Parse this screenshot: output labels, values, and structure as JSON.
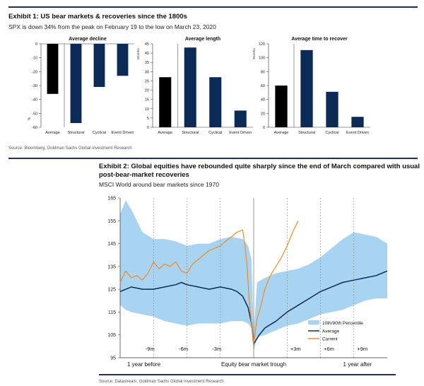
{
  "exhibit1": {
    "title": "Exhibit 1: US bear markets & recoveries since the 1800s",
    "subtitle": "SPX is down 34% from the peak on February 19 to the low on March 23, 2020",
    "source": "Source: Bloomberg, Goldman Sachs Global Investment Research"
  },
  "exhibit2": {
    "title_line1": "Exhibit 2: Global equities have rebounded quite sharply since the end of March compared with usual",
    "title_line2": "post-bear-market recoveries",
    "subtitle": "MSCI World around bear markets since 1970",
    "source": "Source: Datastream, Goldman Sachs Global Investment Research"
  },
  "colors": {
    "black": "#000000",
    "navy": "#0b2a55",
    "band": "#a9d4f1",
    "average_line": "#0f2a55",
    "current_line": "#f08a24",
    "rule": "#1f2f55"
  },
  "chart_data": [
    {
      "type": "bar",
      "title": "Average decline",
      "categories": [
        "Average",
        "Structural",
        "Cyclical",
        "Event Driven"
      ],
      "values": [
        -36,
        -57,
        -31,
        -23
      ],
      "ylim": [
        -60,
        0
      ],
      "yticks": [
        0,
        -10,
        -20,
        -30,
        -40,
        -50,
        -60
      ],
      "ytick_labels": [
        "0",
        "-10",
        "-20",
        "-30",
        "-40",
        "-50",
        "-60"
      ],
      "ylabel": "%",
      "colors": [
        "#000000",
        "#0b2a55",
        "#0b2a55",
        "#0b2a55"
      ]
    },
    {
      "type": "bar",
      "title": "Average length",
      "categories": [
        "Average",
        "Structural",
        "Cyclical",
        "Event Driven"
      ],
      "values": [
        27,
        43,
        27,
        9
      ],
      "ylim": [
        0,
        45
      ],
      "yticks": [
        0,
        5,
        10,
        15,
        20,
        25,
        30,
        35,
        40,
        45
      ],
      "ytick_labels": [
        "0",
        "5",
        "10",
        "15",
        "20",
        "25",
        "30",
        "35",
        "40",
        "45"
      ],
      "ylabel": "Months",
      "colors": [
        "#000000",
        "#0b2a55",
        "#0b2a55",
        "#0b2a55"
      ]
    },
    {
      "type": "bar",
      "title": "Average time to recover",
      "categories": [
        "Average",
        "Structural",
        "Cyclical",
        "Event Driven"
      ],
      "values": [
        60,
        111,
        51,
        15
      ],
      "ylim": [
        0,
        120
      ],
      "yticks": [
        0,
        20,
        40,
        60,
        80,
        100,
        120
      ],
      "ytick_labels": [
        "0",
        "20",
        "40",
        "60",
        "80",
        "100",
        "120"
      ],
      "ylabel": "Months",
      "colors": [
        "#000000",
        "#0b2a55",
        "#0b2a55",
        "#0b2a55"
      ]
    },
    {
      "type": "line",
      "ylim": [
        95,
        165
      ],
      "yticks": [
        95,
        105,
        115,
        125,
        135,
        145,
        155,
        165
      ],
      "ytick_labels": [
        "95",
        "105",
        "115",
        "125",
        "135",
        "145",
        "155",
        "165"
      ],
      "xlim": [
        -12,
        12
      ],
      "x_unit": "months relative to trough",
      "x_labels": [
        {
          "x": -12,
          "text": "1 year before"
        },
        {
          "x": 0,
          "text": "Equity bear market trough"
        },
        {
          "x": 12,
          "text": "1 year after"
        }
      ],
      "period_markers": [
        {
          "x": -9,
          "text": "-9m"
        },
        {
          "x": -6,
          "text": "-6m"
        },
        {
          "x": -3,
          "text": "-3m"
        },
        {
          "x": 3,
          "text": "+3m"
        },
        {
          "x": 6,
          "text": "+6m"
        },
        {
          "x": 9,
          "text": "+9m"
        }
      ],
      "legend": [
        "10th/90th Percentile",
        "Average",
        "Current"
      ],
      "legend_position": "bottom-right",
      "band": {
        "name": "10th/90th Percentile",
        "x": [
          -12,
          -11.5,
          -11,
          -10,
          -9,
          -8,
          -7,
          -6,
          -5,
          -4,
          -3,
          -2,
          -1,
          -0.5,
          -0.2,
          0,
          0.3,
          1,
          2,
          3,
          4,
          5,
          6,
          7,
          8,
          9,
          10,
          11,
          12
        ],
        "high": [
          158,
          164,
          160,
          150,
          147,
          147,
          146,
          144,
          145,
          145,
          147,
          148,
          147,
          144,
          138,
          106,
          128,
          130,
          132,
          133,
          134,
          136,
          139,
          143,
          147,
          150,
          149,
          148,
          145
        ],
        "low": [
          118,
          116,
          115,
          114,
          113,
          111,
          110,
          109,
          110,
          110,
          110,
          111,
          111,
          110,
          108,
          98,
          104,
          105,
          107,
          109,
          110,
          112,
          114,
          115,
          116,
          118,
          120,
          121,
          121
        ]
      },
      "series": [
        {
          "name": "Average",
          "x": [
            -12,
            -11,
            -10,
            -9,
            -8,
            -7,
            -6.5,
            -6,
            -5,
            -4,
            -3,
            -2,
            -1.5,
            -1,
            -0.5,
            -0.2,
            0,
            0.5,
            1,
            2,
            3,
            4,
            5,
            6,
            7,
            8,
            9,
            10,
            11,
            12
          ],
          "y": [
            124,
            126,
            125,
            125,
            126,
            127,
            128,
            127,
            126,
            125,
            126,
            125,
            124,
            122,
            117,
            110,
            101,
            105,
            108,
            111,
            115,
            118,
            121,
            124,
            126,
            128,
            129,
            130,
            131,
            133
          ]
        },
        {
          "name": "Current",
          "x": [
            -12,
            -11.5,
            -11,
            -10.5,
            -10,
            -9.5,
            -9,
            -8.5,
            -8,
            -7.5,
            -7,
            -6.5,
            -6,
            -5.5,
            -5,
            -4.5,
            -4,
            -3.5,
            -3,
            -2.5,
            -2,
            -1.5,
            -1,
            -0.8,
            -0.6,
            -0.4,
            -0.2,
            0,
            0.3,
            0.6,
            1,
            1.5,
            2,
            2.5,
            3,
            3.5,
            4
          ],
          "y": [
            128,
            133,
            130,
            131,
            129,
            132,
            137,
            134,
            136,
            135,
            137,
            133,
            132,
            136,
            138,
            140,
            142,
            143,
            144,
            146,
            148,
            150,
            151,
            145,
            135,
            120,
            110,
            101,
            112,
            117,
            125,
            131,
            135,
            139,
            144,
            150,
            155
          ]
        }
      ]
    }
  ]
}
